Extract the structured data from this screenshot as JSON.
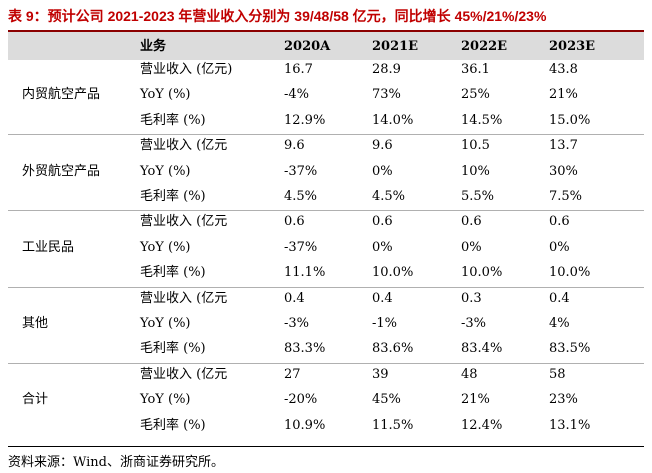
{
  "title": "表 9：预计公司 2021-2023 年营业收入分别为 39/48/58 亿元，同比增长 45%/21%/23%",
  "header": [
    "业务",
    "2020A",
    "2021E",
    "2022E",
    "2023E"
  ],
  "groups": [
    {
      "name": "内贸航空产品",
      "rows": [
        {
          "metric": "营业收入 (亿元)",
          "values": [
            "16.7",
            "28.9",
            "36.1",
            "43.8"
          ]
        },
        {
          "metric": "YoY (%)",
          "values": [
            "-4%",
            "73%",
            "25%",
            "21%"
          ]
        },
        {
          "metric": "毛利率 (%)",
          "values": [
            "12.9%",
            "14.0%",
            "14.5%",
            "15.0%"
          ]
        }
      ]
    },
    {
      "name": "外贸航空产品",
      "rows": [
        {
          "metric": "营业收入 (亿元",
          "values": [
            "9.6",
            "9.6",
            "10.5",
            "13.7"
          ]
        },
        {
          "metric": "YoY (%)",
          "values": [
            "-37%",
            "0%",
            "10%",
            "30%"
          ]
        },
        {
          "metric": "毛利率 (%)",
          "values": [
            "4.5%",
            "4.5%",
            "5.5%",
            "7.5%"
          ]
        }
      ]
    },
    {
      "name": "工业民品",
      "rows": [
        {
          "metric": "营业收入 (亿元",
          "values": [
            "0.6",
            "0.6",
            "0.6",
            "0.6"
          ]
        },
        {
          "metric": "YoY (%)",
          "values": [
            "-37%",
            "0%",
            "0%",
            "0%"
          ]
        },
        {
          "metric": "毛利率 (%)",
          "values": [
            "11.1%",
            "10.0%",
            "10.0%",
            "10.0%"
          ]
        }
      ]
    },
    {
      "name": "其他",
      "rows": [
        {
          "metric": "营业收入 (亿元",
          "values": [
            "0.4",
            "0.4",
            "0.3",
            "0.4"
          ]
        },
        {
          "metric": "YoY (%)",
          "values": [
            "-3%",
            "-1%",
            "-3%",
            "4%"
          ]
        },
        {
          "metric": "毛利率 (%)",
          "values": [
            "83.3%",
            "83.6%",
            "83.4%",
            "83.5%"
          ]
        }
      ]
    },
    {
      "name": "合计",
      "rows": [
        {
          "metric": "营业收入 (亿元",
          "values": [
            "27",
            "39",
            "48",
            "58"
          ]
        },
        {
          "metric": "YoY (%)",
          "values": [
            "-20%",
            "45%",
            "21%",
            "23%"
          ]
        },
        {
          "metric": "毛利率 (%)",
          "values": [
            "10.9%",
            "11.5%",
            "12.4%",
            "13.1%"
          ]
        }
      ]
    }
  ],
  "source": "资料来源：Wind、浙商证券研究所。"
}
